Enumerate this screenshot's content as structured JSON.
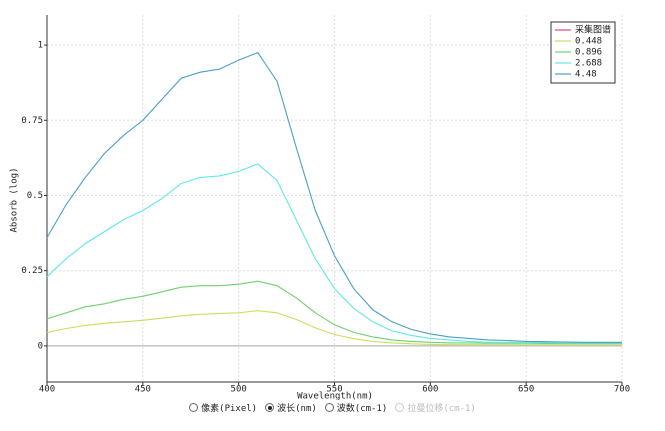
{
  "chart_data": {
    "type": "line",
    "y_label": "Absorb (log)",
    "x_label": "Wavelength(nm)",
    "x": [
      400,
      410,
      420,
      430,
      440,
      450,
      460,
      470,
      480,
      490,
      500,
      510,
      520,
      530,
      540,
      550,
      560,
      570,
      580,
      590,
      600,
      610,
      620,
      630,
      640,
      650,
      660,
      670,
      680,
      690,
      700
    ],
    "series": [
      {
        "name": "采集图谱",
        "color": "#e0487a",
        "values": [
          null,
          null,
          null,
          null,
          null,
          null,
          null,
          null,
          null,
          null,
          null,
          null,
          null,
          null,
          null,
          null,
          null,
          null,
          null,
          null,
          null,
          null,
          null,
          null,
          null,
          null,
          null,
          null,
          null,
          null,
          null
        ]
      },
      {
        "name": "0.448",
        "color": "#c8e060",
        "values": [
          0.045,
          0.058,
          0.068,
          0.075,
          0.08,
          0.085,
          0.092,
          0.1,
          0.105,
          0.108,
          0.11,
          0.117,
          0.11,
          0.088,
          0.06,
          0.038,
          0.024,
          0.015,
          0.01,
          0.007,
          0.005,
          0.004,
          0.004,
          0.004,
          0.004,
          0.004,
          0.004,
          0.004,
          0.004,
          0.004,
          0.004
        ]
      },
      {
        "name": "0.896",
        "color": "#70d070",
        "values": [
          0.09,
          0.11,
          0.13,
          0.14,
          0.155,
          0.165,
          0.18,
          0.195,
          0.2,
          0.2,
          0.205,
          0.215,
          0.2,
          0.16,
          0.11,
          0.07,
          0.045,
          0.03,
          0.02,
          0.015,
          0.012,
          0.01,
          0.01,
          0.009,
          0.009,
          0.009,
          0.008,
          0.008,
          0.008,
          0.008,
          0.008
        ]
      },
      {
        "name": "2.688",
        "color": "#60e8e8",
        "values": [
          0.23,
          0.29,
          0.34,
          0.38,
          0.42,
          0.45,
          0.49,
          0.54,
          0.56,
          0.565,
          0.58,
          0.605,
          0.55,
          0.42,
          0.29,
          0.19,
          0.125,
          0.08,
          0.05,
          0.035,
          0.025,
          0.02,
          0.015,
          0.012,
          0.012,
          0.011,
          0.011,
          0.01,
          0.01,
          0.01,
          0.01
        ]
      },
      {
        "name": "4.48",
        "color": "#4aa0c8",
        "values": [
          0.36,
          0.47,
          0.56,
          0.64,
          0.7,
          0.75,
          0.82,
          0.89,
          0.91,
          0.92,
          0.95,
          0.975,
          0.88,
          0.66,
          0.45,
          0.3,
          0.19,
          0.12,
          0.08,
          0.055,
          0.04,
          0.03,
          0.025,
          0.02,
          0.018,
          0.015,
          0.014,
          0.013,
          0.012,
          0.012,
          0.012
        ]
      }
    ],
    "xlim": [
      400,
      700
    ],
    "xticks": [
      400,
      450,
      500,
      550,
      600,
      650,
      700
    ],
    "ylim": [
      -0.12,
      1.1
    ],
    "yticks": [
      0,
      0.25,
      0.5,
      0.75,
      1
    ],
    "grid": true,
    "legend": "top-right"
  },
  "radio_options": [
    {
      "label": "像素(Pixel)",
      "selected": false,
      "enabled": true
    },
    {
      "label": "波长(nm)",
      "selected": true,
      "enabled": true
    },
    {
      "label": "波数(cm-1)",
      "selected": false,
      "enabled": true
    },
    {
      "label": "拉曼位移(cm-1)",
      "selected": false,
      "enabled": false
    }
  ]
}
